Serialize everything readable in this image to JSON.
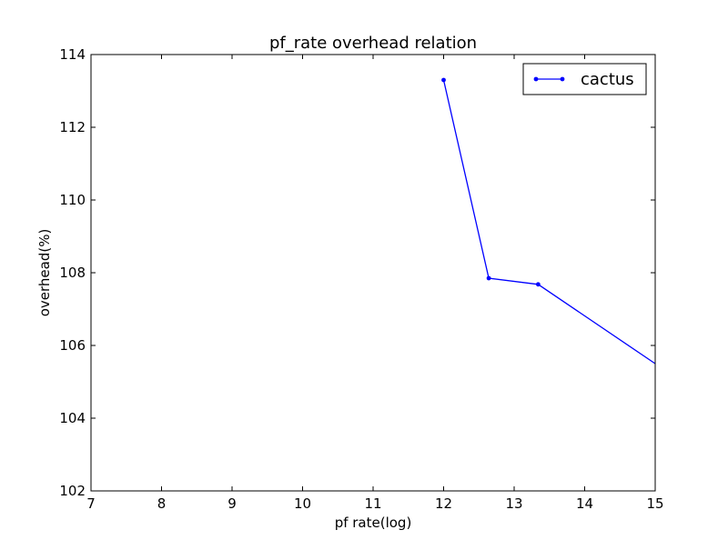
{
  "chart_data": {
    "type": "line",
    "title": "pf_rate overhead relation",
    "xlabel": "pf rate(log)",
    "ylabel": "overhead(%)",
    "xlim": [
      7,
      15
    ],
    "ylim": [
      102,
      114
    ],
    "xticks": [
      7,
      8,
      9,
      10,
      11,
      12,
      13,
      14,
      15
    ],
    "yticks": [
      102,
      104,
      106,
      108,
      110,
      112,
      114
    ],
    "grid": false,
    "legend_position": "top-right",
    "series": [
      {
        "name": "cactus",
        "color": "#0000ff",
        "marker": "dot",
        "x": [
          12.0,
          12.64,
          13.34,
          15.0
        ],
        "y": [
          113.3,
          107.85,
          107.68,
          105.5
        ]
      }
    ]
  }
}
